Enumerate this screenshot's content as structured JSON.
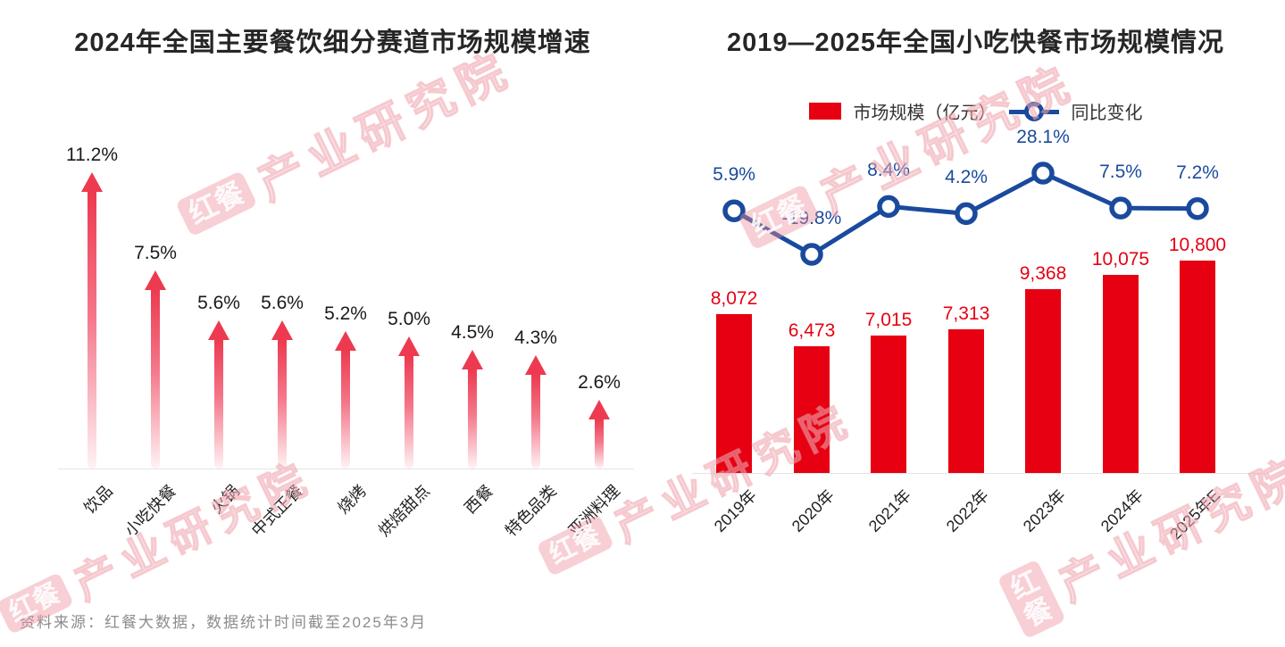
{
  "chart_data": [
    {
      "type": "bar",
      "style": "arrow-bars",
      "title": "2024年全国主要餐饮细分赛道市场规模增速",
      "categories": [
        "饮品",
        "小吃快餐",
        "火锅",
        "中式正餐",
        "烧烤",
        "烘焙甜点",
        "西餐",
        "特色品类",
        "亚洲料理"
      ],
      "values": [
        11.2,
        7.5,
        5.6,
        5.6,
        5.2,
        5.0,
        4.5,
        4.3,
        2.6
      ],
      "value_labels": [
        "11.2%",
        "7.5%",
        "5.6%",
        "5.6%",
        "5.2%",
        "5.0%",
        "4.5%",
        "4.3%",
        "2.6%"
      ],
      "unit": "%",
      "ylim": [
        0,
        12
      ],
      "grid": false,
      "bar_color": "#ed3a50"
    },
    {
      "type": "bar+line",
      "title": "2019—2025年全国小吃快餐市场规模情况",
      "categories": [
        "2019年",
        "2020年",
        "2021年",
        "2022年",
        "2023年",
        "2024年",
        "2025年E"
      ],
      "series": [
        {
          "name": "市场规模（亿元）",
          "type": "bar",
          "color": "#e60012",
          "values": [
            8072,
            6473,
            7015,
            7313,
            9368,
            10075,
            10800
          ],
          "labels": [
            "8,072",
            "6,473",
            "7,015",
            "7,313",
            "9,368",
            "10,075",
            "10,800"
          ]
        },
        {
          "name": "同比变化",
          "type": "line",
          "color": "#1a4a9e",
          "unit": "%",
          "values": [
            5.9,
            -19.8,
            8.4,
            4.2,
            28.1,
            7.5,
            7.2
          ],
          "labels": [
            "5.9%",
            "-19.8%",
            "8.4%",
            "4.2%",
            "28.1%",
            "7.5%",
            "7.2%"
          ]
        }
      ],
      "legend_position": "top",
      "grid": false
    }
  ],
  "source_note": "资料来源：红餐大数据，数据统计时间截至2025年3月",
  "watermark": {
    "brand": "红餐",
    "text": "产业研究院"
  },
  "colors": {
    "bar_red": "#e60012",
    "arrow_red": "#ed3a50",
    "line_blue": "#1a4a9e",
    "title_text": "#262626",
    "source_text": "#8c8c8c"
  }
}
